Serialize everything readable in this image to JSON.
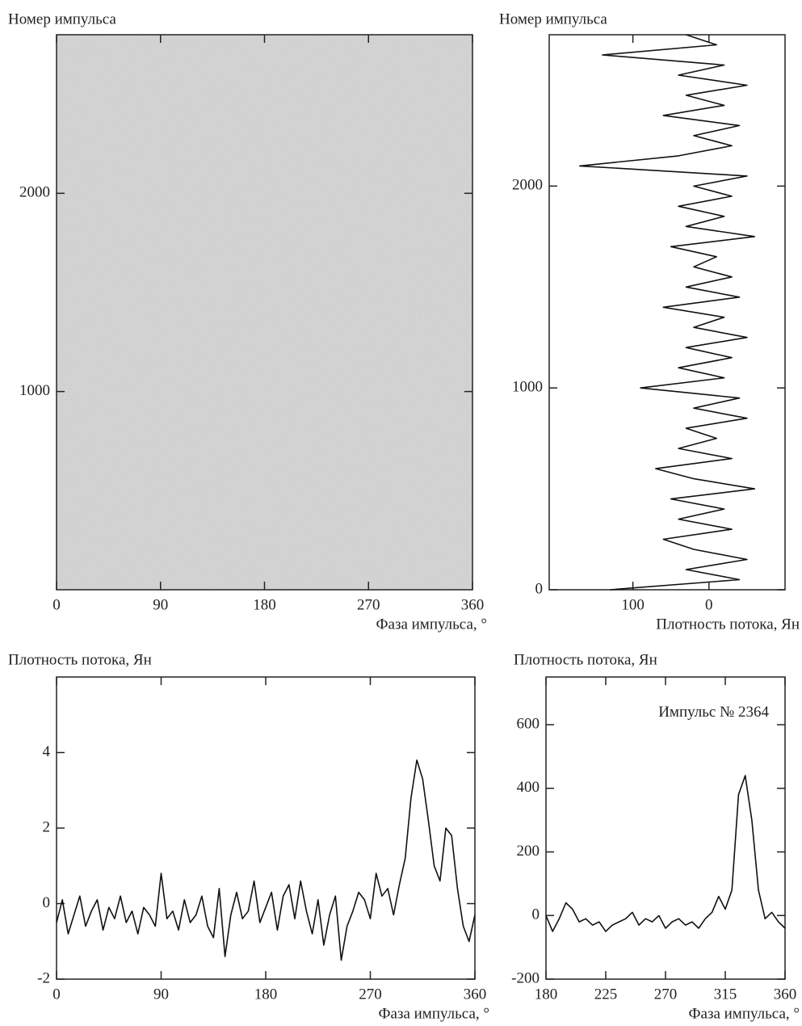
{
  "chart_data": [
    {
      "type": "image",
      "y_label": "Номер импульса",
      "x_label": "Фаза импульса, °",
      "xlim": [
        0,
        360
      ],
      "ylim": [
        0,
        2800
      ],
      "xticks": [
        0,
        90,
        180,
        270,
        360
      ],
      "yticks": [
        1000,
        2000
      ]
    },
    {
      "type": "line",
      "orientation": "vertical",
      "y_label": "Номер импульса",
      "x_label": "Плотность потока, Ян",
      "xlim": [
        210,
        -100
      ],
      "ylim": [
        0,
        2750
      ],
      "xticks": [
        100,
        0
      ],
      "yticks": [
        0,
        1000,
        2000
      ],
      "color": "#111111",
      "x": [
        0,
        50,
        100,
        150,
        200,
        250,
        300,
        350,
        400,
        450,
        500,
        550,
        600,
        650,
        700,
        750,
        800,
        850,
        900,
        950,
        1000,
        1050,
        1100,
        1150,
        1200,
        1250,
        1300,
        1350,
        1400,
        1450,
        1500,
        1550,
        1600,
        1650,
        1700,
        1750,
        1800,
        1850,
        1900,
        1950,
        2000,
        2050,
        2100,
        2150,
        2200,
        2250,
        2300,
        2350,
        2400,
        2450,
        2500,
        2550,
        2600,
        2650,
        2700,
        2750
      ],
      "values": [
        130,
        -40,
        30,
        -50,
        20,
        60,
        -30,
        40,
        -20,
        50,
        -60,
        20,
        70,
        -30,
        40,
        -10,
        30,
        -50,
        20,
        -40,
        90,
        -20,
        40,
        -30,
        30,
        -50,
        20,
        -20,
        60,
        -40,
        30,
        -30,
        20,
        -10,
        50,
        -60,
        30,
        -20,
        40,
        -30,
        20,
        -50,
        170,
        40,
        -30,
        20,
        -40,
        60,
        -20,
        30,
        -50,
        40,
        -20,
        140,
        -10,
        30
      ]
    },
    {
      "type": "line",
      "y_label": "Плотность потока, Ян",
      "x_label": "Фаза импульса, °",
      "xlim": [
        0,
        360
      ],
      "ylim": [
        -2,
        6
      ],
      "xticks": [
        0,
        90,
        180,
        270,
        360
      ],
      "yticks": [
        -2,
        0,
        2,
        4
      ],
      "color": "#111111",
      "x": [
        0,
        5,
        10,
        15,
        20,
        25,
        30,
        35,
        40,
        45,
        50,
        55,
        60,
        65,
        70,
        75,
        80,
        85,
        90,
        95,
        100,
        105,
        110,
        115,
        120,
        125,
        130,
        135,
        140,
        145,
        150,
        155,
        160,
        165,
        170,
        175,
        180,
        185,
        190,
        195,
        200,
        205,
        210,
        215,
        220,
        225,
        230,
        235,
        240,
        245,
        250,
        255,
        260,
        265,
        270,
        275,
        280,
        285,
        290,
        295,
        300,
        305,
        310,
        315,
        320,
        325,
        330,
        335,
        340,
        345,
        350,
        355,
        360
      ],
      "values": [
        -0.5,
        0.1,
        -0.8,
        -0.3,
        0.2,
        -0.6,
        -0.2,
        0.1,
        -0.7,
        -0.1,
        -0.4,
        0.2,
        -0.5,
        -0.2,
        -0.8,
        -0.1,
        -0.3,
        -0.6,
        0.8,
        -0.4,
        -0.2,
        -0.7,
        0.1,
        -0.5,
        -0.3,
        0.2,
        -0.6,
        -0.9,
        0.4,
        -1.4,
        -0.3,
        0.3,
        -0.4,
        -0.2,
        0.6,
        -0.5,
        -0.1,
        0.3,
        -0.7,
        0.2,
        0.5,
        -0.4,
        0.6,
        -0.2,
        -0.8,
        0.1,
        -1.1,
        -0.3,
        0.2,
        -1.5,
        -0.6,
        -0.2,
        0.3,
        0.1,
        -0.4,
        0.8,
        0.2,
        0.4,
        -0.3,
        0.5,
        1.2,
        2.8,
        3.8,
        3.3,
        2.2,
        1.0,
        0.6,
        2.0,
        1.8,
        0.4,
        -0.6,
        -1.0,
        -0.3
      ]
    },
    {
      "type": "line",
      "y_label": "Плотность потока, Ян",
      "x_label": "Фаза импульса, °",
      "annotation": "Импульс № 2364",
      "xlim": [
        180,
        360
      ],
      "ylim": [
        -200,
        750
      ],
      "xticks": [
        180,
        225,
        270,
        315,
        360
      ],
      "yticks": [
        -200,
        0,
        200,
        400,
        600
      ],
      "color": "#111111",
      "x": [
        180,
        185,
        190,
        195,
        200,
        205,
        210,
        215,
        220,
        225,
        230,
        235,
        240,
        245,
        250,
        255,
        260,
        265,
        270,
        275,
        280,
        285,
        290,
        295,
        300,
        305,
        310,
        315,
        320,
        325,
        330,
        335,
        340,
        345,
        350,
        355,
        360
      ],
      "values": [
        0,
        -50,
        -10,
        40,
        20,
        -20,
        -10,
        -30,
        -20,
        -50,
        -30,
        -20,
        -10,
        10,
        -30,
        -10,
        -20,
        0,
        -40,
        -20,
        -10,
        -30,
        -20,
        -40,
        -10,
        10,
        60,
        20,
        80,
        380,
        440,
        300,
        80,
        -10,
        10,
        -20,
        -40
      ]
    }
  ]
}
